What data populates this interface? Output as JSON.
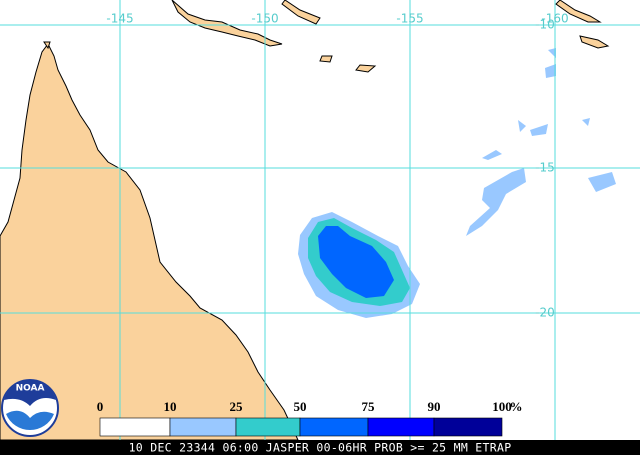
{
  "map": {
    "longitude_labels": [
      "-145",
      "-150",
      "-155",
      "-160"
    ],
    "latitude_labels": [
      "-10",
      "-15",
      "-20"
    ],
    "logo_text": "NOAA",
    "legend": {
      "ticks": [
        0,
        10,
        25,
        50,
        75,
        90,
        100
      ],
      "unit": "%",
      "colors": [
        "#ffffff",
        "#99c8ff",
        "#33cccc",
        "#0066ff",
        "#0000ff",
        "#000099"
      ]
    },
    "footer": "10 DEC 23344 06:00 JASPER 00-06HR PROB >= 25 MM ETRAP"
  }
}
